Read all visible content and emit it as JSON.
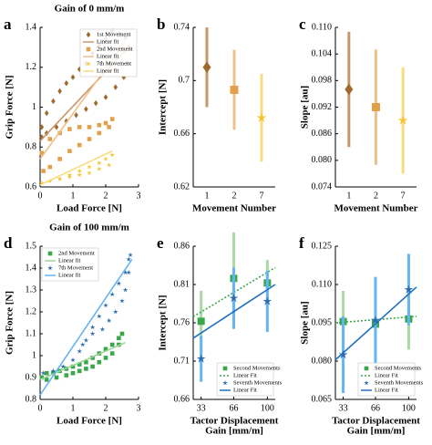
{
  "chart_data": [
    {
      "type": "scatter",
      "label": "a",
      "title": "Gain of 0 mm/m",
      "xlabel": [
        "Load Force [N]"
      ],
      "ylabel": "Grip Force [N]",
      "xlim": [
        0,
        3
      ],
      "xticks": [
        0,
        1,
        2,
        3
      ],
      "ylim": [
        0.6,
        1.4
      ],
      "yticks": [
        0.6,
        0.8,
        1,
        1.2,
        1.4
      ],
      "legend": "upper right",
      "series": [
        {
          "name": "1st Movement",
          "marker": "diamond",
          "color": "#a0692e",
          "x": [
            0.05,
            0.2,
            0.4,
            0.6,
            0.8,
            1.0,
            1.2,
            1.4,
            1.6,
            1.8,
            2.0,
            2.2,
            2.4,
            2.6,
            2.7,
            2.65,
            2.55,
            2.3,
            2.0,
            1.7,
            1.4,
            1.1,
            0.8,
            0.5,
            0.2,
            0.05
          ],
          "values": [
            0.9,
            0.97,
            1.03,
            1.08,
            1.12,
            1.15,
            1.19,
            1.22,
            1.27,
            1.31,
            1.34,
            1.38,
            1.37,
            1.35,
            1.3,
            1.22,
            1.15,
            1.1,
            1.05,
            1.02,
            0.99,
            0.96,
            0.93,
            0.9,
            0.87,
            0.85
          ]
        },
        {
          "name": "Linear fit",
          "marker": "line",
          "color": "#c8966a",
          "x": [
            0,
            2.7
          ],
          "values": [
            0.83,
            1.3
          ]
        },
        {
          "name": "2nd Movement",
          "marker": "square",
          "color": "#e3a04a",
          "x": [
            0.05,
            0.3,
            0.6,
            0.9,
            1.2,
            1.5,
            1.8,
            2.0,
            2.2,
            2.1,
            1.8,
            1.5,
            1.2,
            0.9,
            0.6,
            0.3,
            0.1
          ],
          "values": [
            0.77,
            0.84,
            0.87,
            0.89,
            0.9,
            0.9,
            0.91,
            0.92,
            0.94,
            0.9,
            0.87,
            0.84,
            0.81,
            0.78,
            0.74,
            0.7,
            0.68
          ]
        },
        {
          "name": "Linear fit",
          "marker": "line",
          "color": "#f0c08a",
          "x": [
            0,
            2.6
          ],
          "values": [
            0.74,
            1.33
          ]
        },
        {
          "name": "7th Movement",
          "marker": "star",
          "color": "#f6c431",
          "x": [
            0.05,
            0.3,
            0.6,
            0.9,
            1.2,
            1.5,
            1.8,
            2.0,
            2.2,
            2.1,
            1.8,
            1.5,
            1.2,
            0.9,
            0.6
          ],
          "values": [
            0.62,
            0.63,
            0.64,
            0.66,
            0.68,
            0.7,
            0.72,
            0.74,
            0.76,
            0.71,
            0.69,
            0.67,
            0.66,
            0.65,
            0.64
          ]
        },
        {
          "name": "Linear fit",
          "marker": "line",
          "color": "#f8dc80",
          "x": [
            0,
            2.2
          ],
          "values": [
            0.61,
            0.78
          ]
        }
      ]
    },
    {
      "type": "errorbar",
      "label": "b",
      "xlabel": [
        "Movement Number"
      ],
      "ylabel": "Intercept [N]",
      "categories": [
        "1",
        "2",
        "7"
      ],
      "ylim": [
        0.62,
        0.74
      ],
      "yticks": [
        0.62,
        0.66,
        0.7,
        0.74
      ],
      "values": [
        0.71,
        0.693,
        0.672
      ],
      "errors": [
        0.03,
        0.03,
        0.033
      ],
      "colors": [
        "#a0692e",
        "#e3a04a",
        "#f6c431"
      ],
      "errorColors": [
        "#c8966a",
        "#f0c08a",
        "#f8dc80"
      ],
      "markers": [
        "diamond",
        "square",
        "star"
      ]
    },
    {
      "type": "errorbar",
      "label": "c",
      "xlabel": [
        "Movement Number"
      ],
      "ylabel": "Slope [au]",
      "categories": [
        "1",
        "2",
        "7"
      ],
      "ylim": [
        0.074,
        0.11
      ],
      "yticks": [
        0.074,
        {
          "value": 0.08,
          "label": "0.080"
        },
        0.086,
        0.092,
        0.098,
        0.104,
        {
          "value": 0.11,
          "label": "0.110"
        }
      ],
      "values": [
        0.096,
        0.092,
        0.089
      ],
      "errors": [
        0.013,
        0.013,
        0.012
      ],
      "colors": [
        "#a0692e",
        "#e3a04a",
        "#f6c431"
      ],
      "errorColors": [
        "#c8966a",
        "#f0c08a",
        "#f8dc80"
      ],
      "markers": [
        "diamond",
        "square",
        "star"
      ]
    },
    {
      "type": "scatter",
      "label": "d",
      "title": "Gain of 100 mm/m",
      "xlabel": [
        "Load Force [N]"
      ],
      "ylabel": "Grip Force [N]",
      "xlim": [
        0,
        3
      ],
      "xticks": [
        0,
        1,
        2,
        3
      ],
      "ylim": [
        0.8,
        1.5
      ],
      "yticks": [
        0.8,
        0.9,
        1,
        1.1,
        1.2,
        1.3,
        1.4,
        1.5
      ],
      "legend": "upper left",
      "series": [
        {
          "name": "2nd Movement",
          "marker": "square",
          "color": "#3aa84a",
          "x": [
            0.05,
            0.2,
            0.4,
            0.6,
            0.8,
            1.0,
            1.2,
            1.4,
            1.6,
            1.8,
            2.0,
            2.2,
            2.4,
            2.5,
            2.4,
            2.2,
            2.0,
            1.8,
            1.6,
            1.4,
            1.2,
            1.0,
            0.8,
            0.5,
            0.2
          ],
          "values": [
            0.9,
            0.92,
            0.92,
            0.93,
            0.94,
            0.95,
            0.96,
            0.97,
            0.99,
            1.01,
            1.03,
            1.05,
            1.08,
            1.1,
            1.05,
            1.01,
            0.99,
            0.97,
            0.95,
            0.94,
            0.93,
            0.92,
            0.91,
            0.9,
            0.89
          ]
        },
        {
          "name": "Linear fit",
          "marker": "line",
          "color": "#9fd49a",
          "x": [
            0,
            2.6
          ],
          "values": [
            0.89,
            1.06
          ]
        },
        {
          "name": "7th Movement",
          "marker": "star",
          "color": "#2b6cb0",
          "x": [
            0.1,
            0.4,
            0.7,
            1.0,
            1.2,
            1.4,
            1.6,
            1.8,
            2.0,
            2.2,
            2.4,
            2.6,
            2.7,
            2.75,
            2.7,
            2.6,
            2.5,
            2.3,
            2.1,
            1.9,
            1.6,
            1.3
          ],
          "values": [
            0.92,
            0.93,
            0.95,
            0.98,
            1.02,
            1.07,
            1.13,
            1.18,
            1.23,
            1.28,
            1.33,
            1.38,
            1.44,
            1.46,
            1.38,
            1.3,
            1.25,
            1.2,
            1.16,
            1.12,
            1.1,
            1.05
          ]
        },
        {
          "name": "Linear fit",
          "marker": "line",
          "color": "#64b5f6",
          "x": [
            0,
            2.8
          ],
          "values": [
            0.82,
            1.44
          ]
        }
      ]
    },
    {
      "type": "errorbar",
      "label": "e",
      "xlabel": [
        "Tactor Displacement",
        "Gain [mm/m]"
      ],
      "ylabel": "Intercept [N]",
      "xlim": [
        25,
        108
      ],
      "xticks": [
        33,
        66,
        100
      ],
      "ylim": [
        0.66,
        0.86
      ],
      "yticks": [
        0.66,
        0.71,
        0.76,
        0.81,
        0.86
      ],
      "legend": "lower right",
      "series": [
        {
          "name": "Second Movements",
          "marker": "square",
          "color": "#3aa84a",
          "errorColor": "#a8dba4",
          "x": [
            33,
            66,
            100
          ],
          "values": [
            0.762,
            0.818,
            0.812
          ],
          "errors": [
            0.04,
            0.06,
            0.03
          ]
        },
        {
          "name": "Linear Fit",
          "marker": "line",
          "dash": true,
          "color": "#3aa84a",
          "x": [
            25,
            108
          ],
          "values": [
            0.768,
            0.832
          ]
        },
        {
          "name": "Seventh Movements",
          "marker": "star",
          "color": "#2b6cb0",
          "errorColor": "#64b5f6",
          "x": [
            33,
            66,
            100
          ],
          "values": [
            0.713,
            0.792,
            0.788
          ],
          "errors": [
            0.03,
            0.04,
            0.04
          ]
        },
        {
          "name": "Linear Fit",
          "marker": "line",
          "color": "#1f6fc0",
          "x": [
            25,
            108
          ],
          "values": [
            0.74,
            0.81
          ]
        }
      ]
    },
    {
      "type": "errorbar",
      "label": "f",
      "xlabel": [
        "Tactor Displacement",
        "Gain [mm/m]"
      ],
      "ylabel": "Slope [au]",
      "xlim": [
        25,
        108
      ],
      "xticks": [
        33,
        66,
        100
      ],
      "ylim": [
        0.065,
        0.125
      ],
      "yticks": [
        0.065,
        {
          "value": 0.08,
          "label": "0.080"
        },
        0.095,
        {
          "value": 0.11,
          "label": "0.110"
        },
        0.125
      ],
      "legend": "lower right",
      "series": [
        {
          "name": "Second Movements",
          "marker": "square",
          "color": "#3aa84a",
          "errorColor": "#a8dba4",
          "x": [
            33,
            66,
            100
          ],
          "values": [
            0.0955,
            0.0945,
            0.0965
          ],
          "errors": [
            0.012,
            0.014,
            0.012
          ]
        },
        {
          "name": "Linear Fit",
          "marker": "line",
          "dash": true,
          "color": "#3aa84a",
          "x": [
            25,
            108
          ],
          "values": [
            0.095,
            0.0975
          ]
        },
        {
          "name": "Seventh Movements",
          "marker": "star",
          "color": "#2b6cb0",
          "errorColor": "#64b5f6",
          "x": [
            33,
            66,
            100
          ],
          "values": [
            0.0825,
            0.096,
            0.108
          ],
          "errors": [
            0.015,
            0.017,
            0.014
          ]
        },
        {
          "name": "Linear Fit",
          "marker": "line",
          "color": "#1f6fc0",
          "x": [
            25,
            108
          ],
          "values": [
            0.0805,
            0.109
          ]
        }
      ]
    }
  ]
}
